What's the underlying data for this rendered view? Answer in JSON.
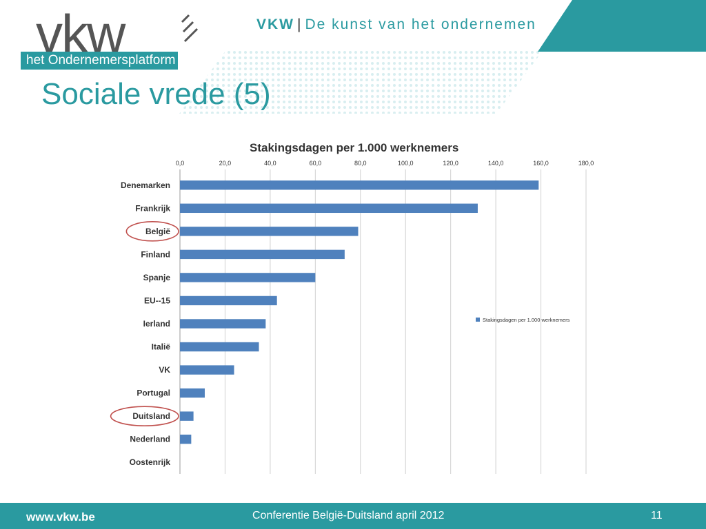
{
  "header": {
    "brand": "VKW",
    "separator": "|",
    "tagline": "De kunst van het ondernemen",
    "logo_letters": "vkw",
    "logo_subtitle": "het Ondernemersplatform"
  },
  "slide": {
    "title": "Sociale vrede (5)"
  },
  "colors": {
    "accent": "#2a9aa0",
    "bar": "#4f81bd",
    "highlight_circle": "#c0504d"
  },
  "chart_data": {
    "type": "bar",
    "orientation": "horizontal",
    "title": "Stakingsdagen per 1.000 werknemers",
    "categories": [
      "Denemarken",
      "Frankrijk",
      "België",
      "Finland",
      "Spanje",
      "EU--15",
      "Ierland",
      "Italië",
      "VK",
      "Portugal",
      "Duitsland",
      "Nederland",
      "Oostenrijk"
    ],
    "series": [
      {
        "name": "Stakingsdagen per 1.000 werknemers",
        "values": [
          159,
          132,
          79,
          73,
          60,
          43,
          38,
          35,
          24,
          11,
          6,
          5,
          0
        ]
      }
    ],
    "xlim": [
      0,
      180
    ],
    "ticks": [
      "0,0",
      "20,0",
      "40,0",
      "60,0",
      "80,0",
      "100,0",
      "120,0",
      "140,0",
      "160,0",
      "180,0"
    ],
    "tick_values": [
      0,
      20,
      40,
      60,
      80,
      100,
      120,
      140,
      160,
      180
    ],
    "grid": true,
    "legend": "right",
    "highlighted": [
      "België",
      "Duitsland"
    ]
  },
  "footer": {
    "url": "www.vkw.be",
    "conference": "Conferentie België-Duitsland april 2012",
    "page": "11"
  }
}
